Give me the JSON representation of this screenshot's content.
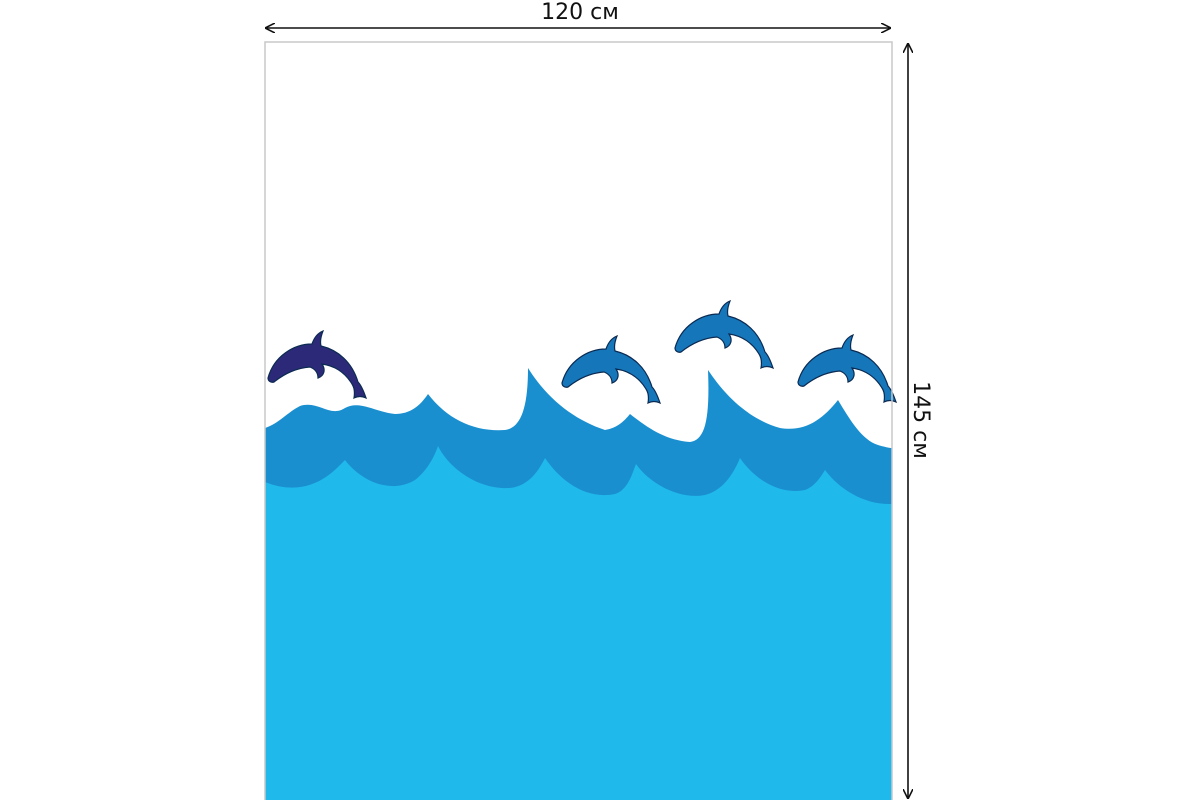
{
  "dimensions": {
    "width_label": "120 см",
    "height_label": "145 см"
  },
  "colors": {
    "sky": "#ffffff",
    "wave_back": "#1a8fd0",
    "sea": "#20b9ec",
    "dolphin_dark": "#2c2a78",
    "dolphin_blue": "#1576b9",
    "dolphin_outline": "#0b2a52",
    "frame_outline": "#c8c8c8",
    "dimension_line": "#111111"
  },
  "image": {
    "subject": "shower-curtain-dolphins-waves",
    "dolphin_count": 4
  }
}
